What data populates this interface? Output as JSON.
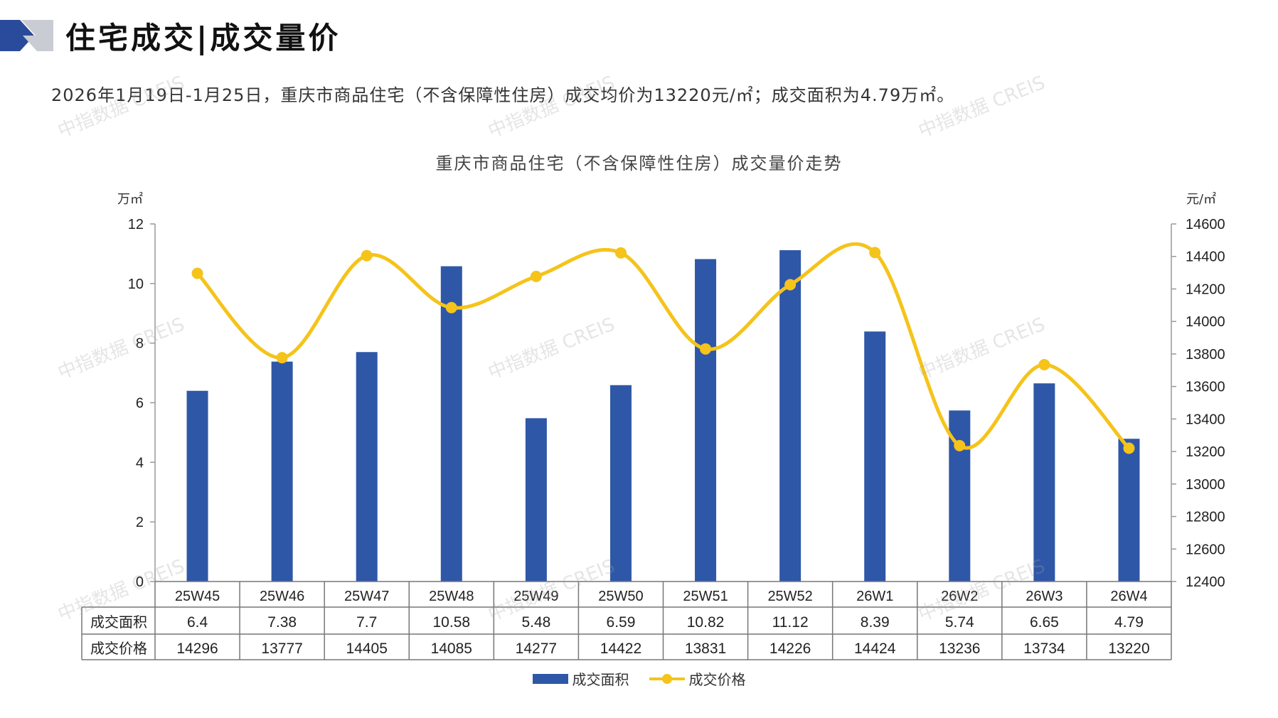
{
  "header": {
    "title": "住宅成交|成交量价",
    "summary": "2026年1月19日-1月25日，重庆市商品住宅（不含保障性住房）成交均价为13220元/㎡；成交面积为4.79万㎡。"
  },
  "watermark": "中指数据 CREIS",
  "colors": {
    "bar": "#2f57a7",
    "line": "#f5c31a",
    "header_dark": "#2a4a9b",
    "header_light": "#c9ccd3"
  },
  "chart_data": {
    "type": "bar",
    "title": "重庆市商品住宅（不含保障性住房）成交量价走势",
    "categories": [
      "25W45",
      "25W46",
      "25W47",
      "25W48",
      "25W49",
      "25W50",
      "25W51",
      "25W52",
      "26W1",
      "26W2",
      "26W3",
      "26W4"
    ],
    "series": [
      {
        "name": "成交面积",
        "type": "bar",
        "axis": "left",
        "values": [
          6.4,
          7.38,
          7.7,
          10.58,
          5.48,
          6.59,
          10.82,
          11.12,
          8.39,
          5.74,
          6.65,
          4.79
        ]
      },
      {
        "name": "成交价格",
        "type": "line",
        "axis": "right",
        "values": [
          14296,
          13777,
          14405,
          14085,
          14277,
          14422,
          13831,
          14226,
          14424,
          13236,
          13734,
          13220
        ]
      }
    ],
    "table_rows": [
      {
        "label": "成交面积",
        "cells": [
          "6.4",
          "7.38",
          "7.7",
          "10.58",
          "5.48",
          "6.59",
          "10.82",
          "11.12",
          "8.39",
          "5.74",
          "6.65",
          "4.79"
        ]
      },
      {
        "label": "成交价格",
        "cells": [
          "14296",
          "13777",
          "14405",
          "14085",
          "14277",
          "14422",
          "13831",
          "14226",
          "14424",
          "13236",
          "13734",
          "13220"
        ]
      }
    ],
    "y_left": {
      "unit": "万㎡",
      "ylim": [
        0,
        12
      ],
      "ticks": [
        "0",
        "2",
        "4",
        "6",
        "8",
        "10",
        "12"
      ]
    },
    "y_right": {
      "unit": "元/㎡",
      "ylim": [
        12400,
        14600
      ],
      "ticks": [
        "12400",
        "12600",
        "12800",
        "13000",
        "13200",
        "13400",
        "13600",
        "13800",
        "14000",
        "14200",
        "14400",
        "14600"
      ]
    },
    "legend": {
      "position": "bottom",
      "items": [
        "成交面积",
        "成交价格"
      ]
    },
    "grid": false
  }
}
